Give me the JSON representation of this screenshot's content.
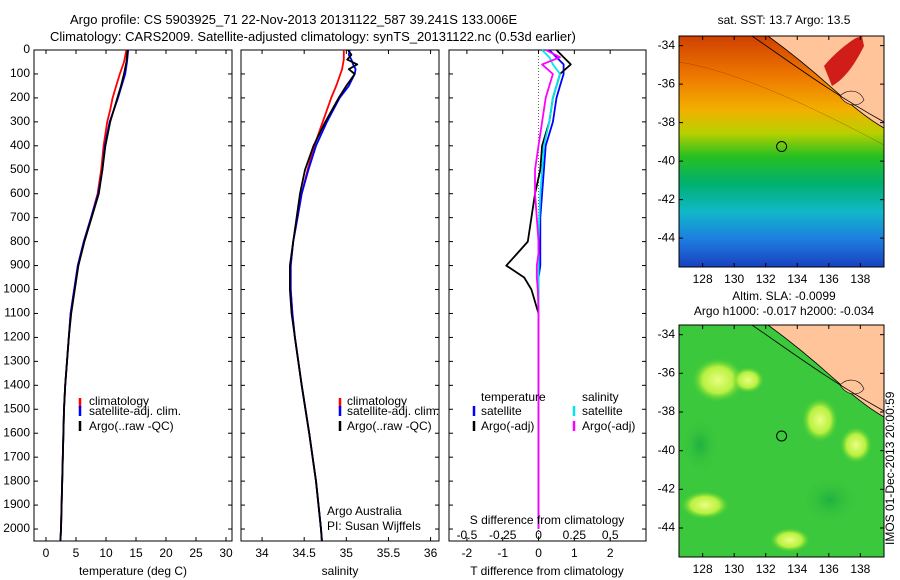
{
  "header": {
    "line1": "Argo profile: CS 5903925_71 22-Nov-2013 20131122_587 39.241S 133.006E",
    "line2": "Climatology: CARS2009. Satellite-adjusted climatology: synTS_20131122.nc (0.53d earlier)"
  },
  "footer": {
    "stamp": "IMOS 01-Dec-2013 20:00:59"
  },
  "colors": {
    "climatology": "#ff0000",
    "satellite": "#0000ff",
    "argo": "#000000",
    "sal_satellite": "#00e5ee",
    "sal_argo": "#ff00ff"
  },
  "chart_data": [
    {
      "type": "line",
      "id": "temperature",
      "xlabel": "temperature (deg C)",
      "ylabel": "",
      "xlim": [
        -2,
        31
      ],
      "ylim": [
        0,
        2050
      ],
      "xticks": [
        0,
        5,
        10,
        15,
        20,
        25,
        30
      ],
      "yticks": [
        0,
        100,
        200,
        300,
        400,
        500,
        600,
        700,
        800,
        900,
        1000,
        1100,
        1200,
        1300,
        1400,
        1500,
        1600,
        1700,
        1800,
        1900,
        2000
      ],
      "depth": [
        0,
        50,
        100,
        150,
        200,
        250,
        300,
        400,
        500,
        600,
        700,
        800,
        900,
        1000,
        1100,
        1200,
        1300,
        1400,
        1500,
        1600,
        1800,
        2000,
        2050
      ],
      "legend": {
        "labels": [
          "climatology",
          "satellite-adj. clim.",
          "Argo(..raw -QC)"
        ]
      },
      "series": [
        {
          "key": "climatology",
          "values": [
            13.4,
            13.0,
            12.3,
            11.7,
            11.1,
            10.7,
            10.2,
            9.6,
            9.2,
            8.6,
            7.5,
            6.3,
            5.3,
            4.7,
            4.1,
            3.8,
            3.5,
            3.2,
            3.0,
            2.9,
            2.7,
            2.5,
            2.4
          ]
        },
        {
          "key": "satellite",
          "values": [
            13.7,
            13.5,
            13.2,
            12.6,
            12.0,
            11.3,
            10.6,
            9.8,
            9.4,
            8.7,
            7.5,
            6.3,
            5.3,
            4.7,
            4.1,
            3.8,
            3.5,
            3.2,
            3.0,
            2.9,
            2.7,
            2.5,
            2.4
          ]
        },
        {
          "key": "argo",
          "values": [
            13.6,
            13.4,
            13.0,
            12.5,
            11.9,
            11.3,
            10.7,
            9.9,
            9.4,
            8.8,
            7.6,
            6.4,
            5.4,
            4.8,
            4.2,
            3.8,
            3.5,
            3.2,
            3.0,
            2.9,
            2.7,
            2.5,
            2.4
          ]
        }
      ]
    },
    {
      "type": "line",
      "id": "salinity",
      "xlabel": "salinity",
      "ylabel": "",
      "xlim": [
        33.75,
        36.1
      ],
      "ylim": [
        0,
        2050
      ],
      "xticks": [
        34,
        34.5,
        35,
        35.5,
        36
      ],
      "depth": [
        0,
        20,
        40,
        60,
        80,
        100,
        150,
        200,
        300,
        400,
        500,
        600,
        700,
        800,
        900,
        1000,
        1100,
        1200,
        1400,
        1600,
        1800,
        2000,
        2050
      ],
      "legend": {
        "labels": [
          "climatology",
          "satellite-adj. clim.",
          "Argo(..raw -QC)"
        ]
      },
      "annotation": [
        "Argo Australia",
        "PI: Susan Wijffels"
      ],
      "series": [
        {
          "key": "climatology",
          "values": [
            34.97,
            34.97,
            34.97,
            34.96,
            34.95,
            34.93,
            34.88,
            34.82,
            34.72,
            34.62,
            34.54,
            34.47,
            34.42,
            34.37,
            34.34,
            34.34,
            34.36,
            34.39,
            34.47,
            34.56,
            34.64,
            34.7,
            34.71
          ]
        },
        {
          "key": "satellite",
          "values": [
            35.04,
            35.03,
            35.06,
            35.08,
            35.11,
            35.1,
            35.03,
            34.92,
            34.77,
            34.64,
            34.55,
            34.47,
            34.42,
            34.37,
            34.34,
            34.34,
            34.36,
            34.39,
            34.47,
            34.56,
            34.64,
            34.7,
            34.71
          ]
        },
        {
          "key": "argo",
          "values": [
            35.02,
            35.06,
            35.01,
            35.13,
            35.03,
            35.1,
            35.0,
            34.91,
            34.75,
            34.61,
            34.51,
            34.45,
            34.41,
            34.37,
            34.33,
            34.33,
            34.35,
            34.39,
            34.47,
            34.56,
            34.64,
            34.7,
            34.71
          ]
        }
      ]
    },
    {
      "type": "line",
      "id": "difference",
      "xlabel": "T difference from climatology",
      "xlabel2": "S difference from climatology",
      "ylabel": "",
      "xlim": [
        -2.5,
        3
      ],
      "ylim": [
        0,
        2050
      ],
      "xticks": [
        -2,
        -1,
        0,
        1,
        2
      ],
      "xticks2": {
        "positions": [
          -2,
          -1,
          0,
          1,
          2
        ],
        "labels": [
          "-0.5",
          "-0.25",
          "0",
          "0.25",
          "0.5"
        ]
      },
      "depth": [
        0,
        30,
        60,
        100,
        150,
        200,
        300,
        400,
        500,
        600,
        700,
        800,
        850,
        900,
        950,
        1000,
        1100,
        1200,
        1400,
        1600,
        1800,
        2000
      ],
      "legend": {
        "labels": [
          "temperature",
          "satellite",
          "Argo(-adj)",
          "salinity",
          "satellite",
          "Argo(-adj)"
        ]
      },
      "series": [
        {
          "key": "t_satellite",
          "values": [
            0.3,
            0.5,
            0.7,
            0.7,
            0.6,
            0.5,
            0.4,
            0.2,
            0.15,
            0.1,
            0.05,
            0.05,
            0.05,
            0.05,
            0.0,
            0.0,
            0.0,
            0.0,
            0.0,
            0.0,
            0.0,
            0.0
          ]
        },
        {
          "key": "t_argo",
          "values": [
            0.5,
            0.7,
            0.9,
            0.6,
            0.5,
            0.4,
            0.3,
            0.1,
            0.05,
            -0.1,
            -0.2,
            -0.3,
            -0.6,
            -0.9,
            -0.4,
            -0.2,
            0.0,
            0.0,
            0.0,
            0.0,
            0.0,
            0.0
          ]
        },
        {
          "key": "s_satellite",
          "values": [
            0.1,
            0.3,
            0.4,
            0.6,
            0.5,
            0.4,
            0.3,
            0.15,
            0.1,
            0.05,
            0.02,
            0.0,
            0.0,
            0.0,
            0.0,
            0.0,
            0.0,
            0.0,
            0.0,
            0.0,
            0.0,
            0.0
          ]
        },
        {
          "key": "s_argo",
          "values": [
            0.2,
            0.6,
            0.1,
            0.4,
            0.3,
            0.2,
            0.1,
            0.0,
            -0.1,
            -0.1,
            -0.05,
            0.0,
            0.0,
            -0.05,
            -0.05,
            -0.02,
            0.0,
            0.0,
            0.0,
            0.0,
            0.0,
            0.0
          ]
        }
      ]
    },
    {
      "type": "heatmap",
      "id": "sst_map",
      "title": "sat. SST: 13.7 Argo: 13.5",
      "xlim": [
        126.5,
        139.5
      ],
      "ylim": [
        -45.5,
        -33.5
      ],
      "xticks": [
        128,
        130,
        132,
        134,
        136,
        138
      ],
      "yticks": [
        -34,
        -36,
        -38,
        -40,
        -42,
        -44
      ],
      "profile_location": {
        "lon": 133.006,
        "lat": -39.241
      }
    },
    {
      "type": "heatmap",
      "id": "sla_map",
      "title_lines": [
        "Altim. SLA: -0.0099",
        "Argo h1000: -0.017 h2000: -0.034"
      ],
      "xlim": [
        126.5,
        139.5
      ],
      "ylim": [
        -45.5,
        -33.5
      ],
      "xticks": [
        128,
        130,
        132,
        134,
        136,
        138
      ],
      "yticks": [
        -34,
        -36,
        -38,
        -40,
        -42,
        -44
      ],
      "profile_location": {
        "lon": 133.006,
        "lat": -39.241
      }
    }
  ]
}
